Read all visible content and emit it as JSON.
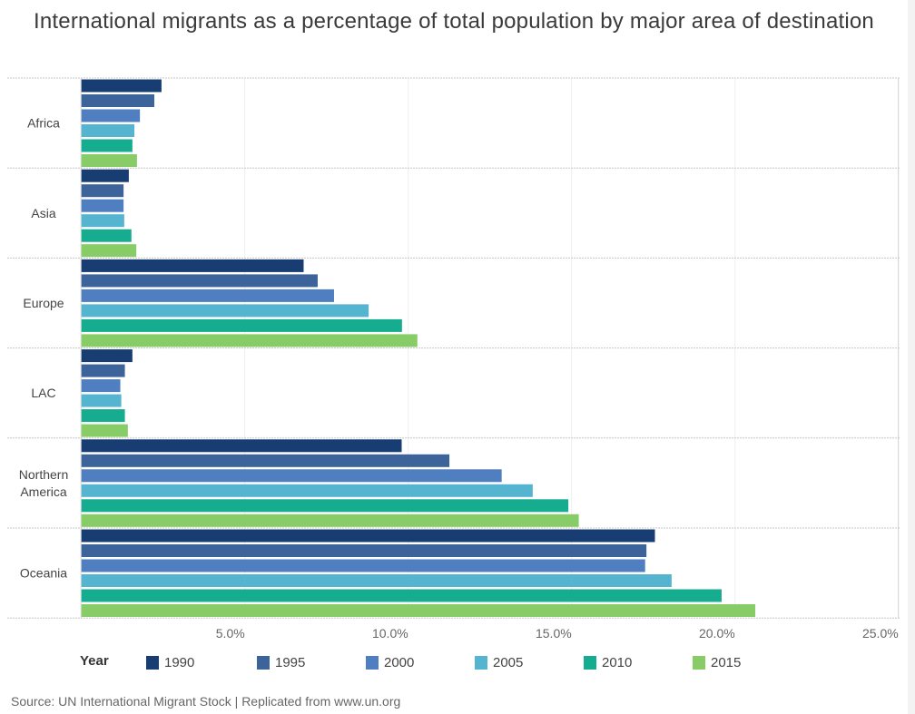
{
  "page": {
    "title": "International migrants as a percentage of total population by major area of destination",
    "footer": "Source: UN International Migrant Stock  |  Replicated from www.un.org"
  },
  "legend": {
    "title": "Year",
    "items": [
      {
        "label": "1990",
        "color": "#183d72"
      },
      {
        "label": "1995",
        "color": "#3c649a"
      },
      {
        "label": "2000",
        "color": "#4f7fc0"
      },
      {
        "label": "2005",
        "color": "#55b4cf"
      },
      {
        "label": "2010",
        "color": "#16ac90"
      },
      {
        "label": "2015",
        "color": "#87cc66"
      }
    ]
  },
  "chart_data": {
    "type": "bar",
    "orientation": "horizontal",
    "title": "International migrants as a percentage of total population by major area of destination",
    "xlabel": "",
    "ylabel": "",
    "categories": [
      "Africa",
      "Asia",
      "Europe",
      "LAC",
      "Northern America",
      "Oceania"
    ],
    "category_display": [
      [
        "Africa"
      ],
      [
        "Asia"
      ],
      [
        "Europe"
      ],
      [
        "LAC"
      ],
      [
        "Northern",
        "America"
      ],
      [
        "Oceania"
      ]
    ],
    "xlim": [
      0,
      25
    ],
    "x_ticks": [
      5,
      10,
      15,
      20,
      25
    ],
    "x_tick_labels": [
      "5.0%",
      "10.0%",
      "15.0%",
      "20.0%",
      "25.0%"
    ],
    "grid": true,
    "legend_title": "Year",
    "legend_position": "bottom",
    "series": [
      {
        "name": "1990",
        "color": "#183d72",
        "values": [
          2.45,
          1.45,
          6.8,
          1.56,
          9.8,
          17.55
        ]
      },
      {
        "name": "1995",
        "color": "#3c649a",
        "values": [
          2.23,
          1.29,
          7.23,
          1.33,
          11.26,
          17.29
        ]
      },
      {
        "name": "2000",
        "color": "#4f7fc0",
        "values": [
          1.79,
          1.29,
          7.73,
          1.19,
          12.86,
          17.25
        ]
      },
      {
        "name": "2005",
        "color": "#55b4cf",
        "values": [
          1.62,
          1.31,
          8.79,
          1.22,
          13.81,
          18.06
        ]
      },
      {
        "name": "2010",
        "color": "#16ac90",
        "values": [
          1.56,
          1.53,
          9.81,
          1.33,
          14.9,
          19.59
        ]
      },
      {
        "name": "2015",
        "color": "#87cc66",
        "values": [
          1.7,
          1.68,
          10.28,
          1.42,
          15.22,
          20.62
        ]
      }
    ]
  }
}
